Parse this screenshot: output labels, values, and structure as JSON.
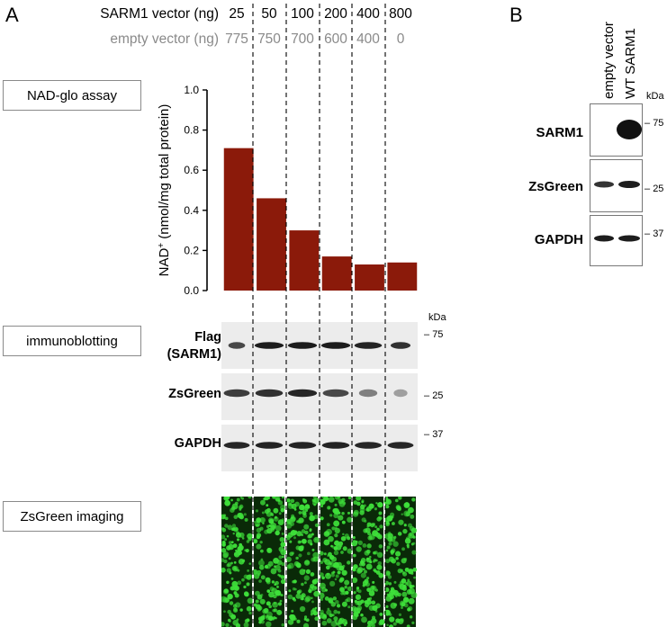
{
  "panel_a": {
    "letter": "A",
    "header": {
      "sarm1_label": "SARM1 vector (ng)",
      "empty_label": "empty vector (ng)",
      "sarm1_values": [
        "25",
        "50",
        "100",
        "200",
        "400",
        "800"
      ],
      "empty_values": [
        "775",
        "750",
        "700",
        "600",
        "400",
        "0"
      ]
    },
    "box_labels": {
      "nad": "NAD-glo assay",
      "immuno": "immunoblotting",
      "imaging": "ZsGreen imaging"
    },
    "blot_labels": {
      "flag_line1": "Flag",
      "flag_line2": "(SARM1)",
      "zsgreen": "ZsGreen",
      "gapdh": "GAPDH"
    },
    "kda": "kDa",
    "mw_markers": [
      "75",
      "25",
      "37"
    ]
  },
  "chart_data": {
    "type": "bar",
    "categories": [
      "25",
      "50",
      "100",
      "200",
      "400",
      "800"
    ],
    "values": [
      0.71,
      0.46,
      0.3,
      0.17,
      0.13,
      0.14
    ],
    "title": "",
    "xlabel": "",
    "ylabel_main": "NAD",
    "ylabel_sup": "+",
    "ylabel_rest": " (nmol/mg total protein)",
    "ylim": [
      0,
      1.0
    ],
    "yticks": [
      "0.0",
      "0.2",
      "0.4",
      "0.6",
      "0.8",
      "1.0"
    ],
    "bar_color": "#8b1a0a",
    "grid": false
  },
  "panel_b": {
    "letter": "B",
    "lanes": [
      "empty vector",
      "WT SARM1"
    ],
    "kda": "kDa",
    "rows": [
      {
        "label": "SARM1",
        "mw": "75"
      },
      {
        "label": "ZsGreen",
        "mw": "25"
      },
      {
        "label": "GAPDH",
        "mw": "37"
      }
    ]
  },
  "colors": {
    "bar": "#8b1a0a",
    "imaging_bg": "#0a2a08",
    "imaging_cell": "#3ee03a"
  }
}
